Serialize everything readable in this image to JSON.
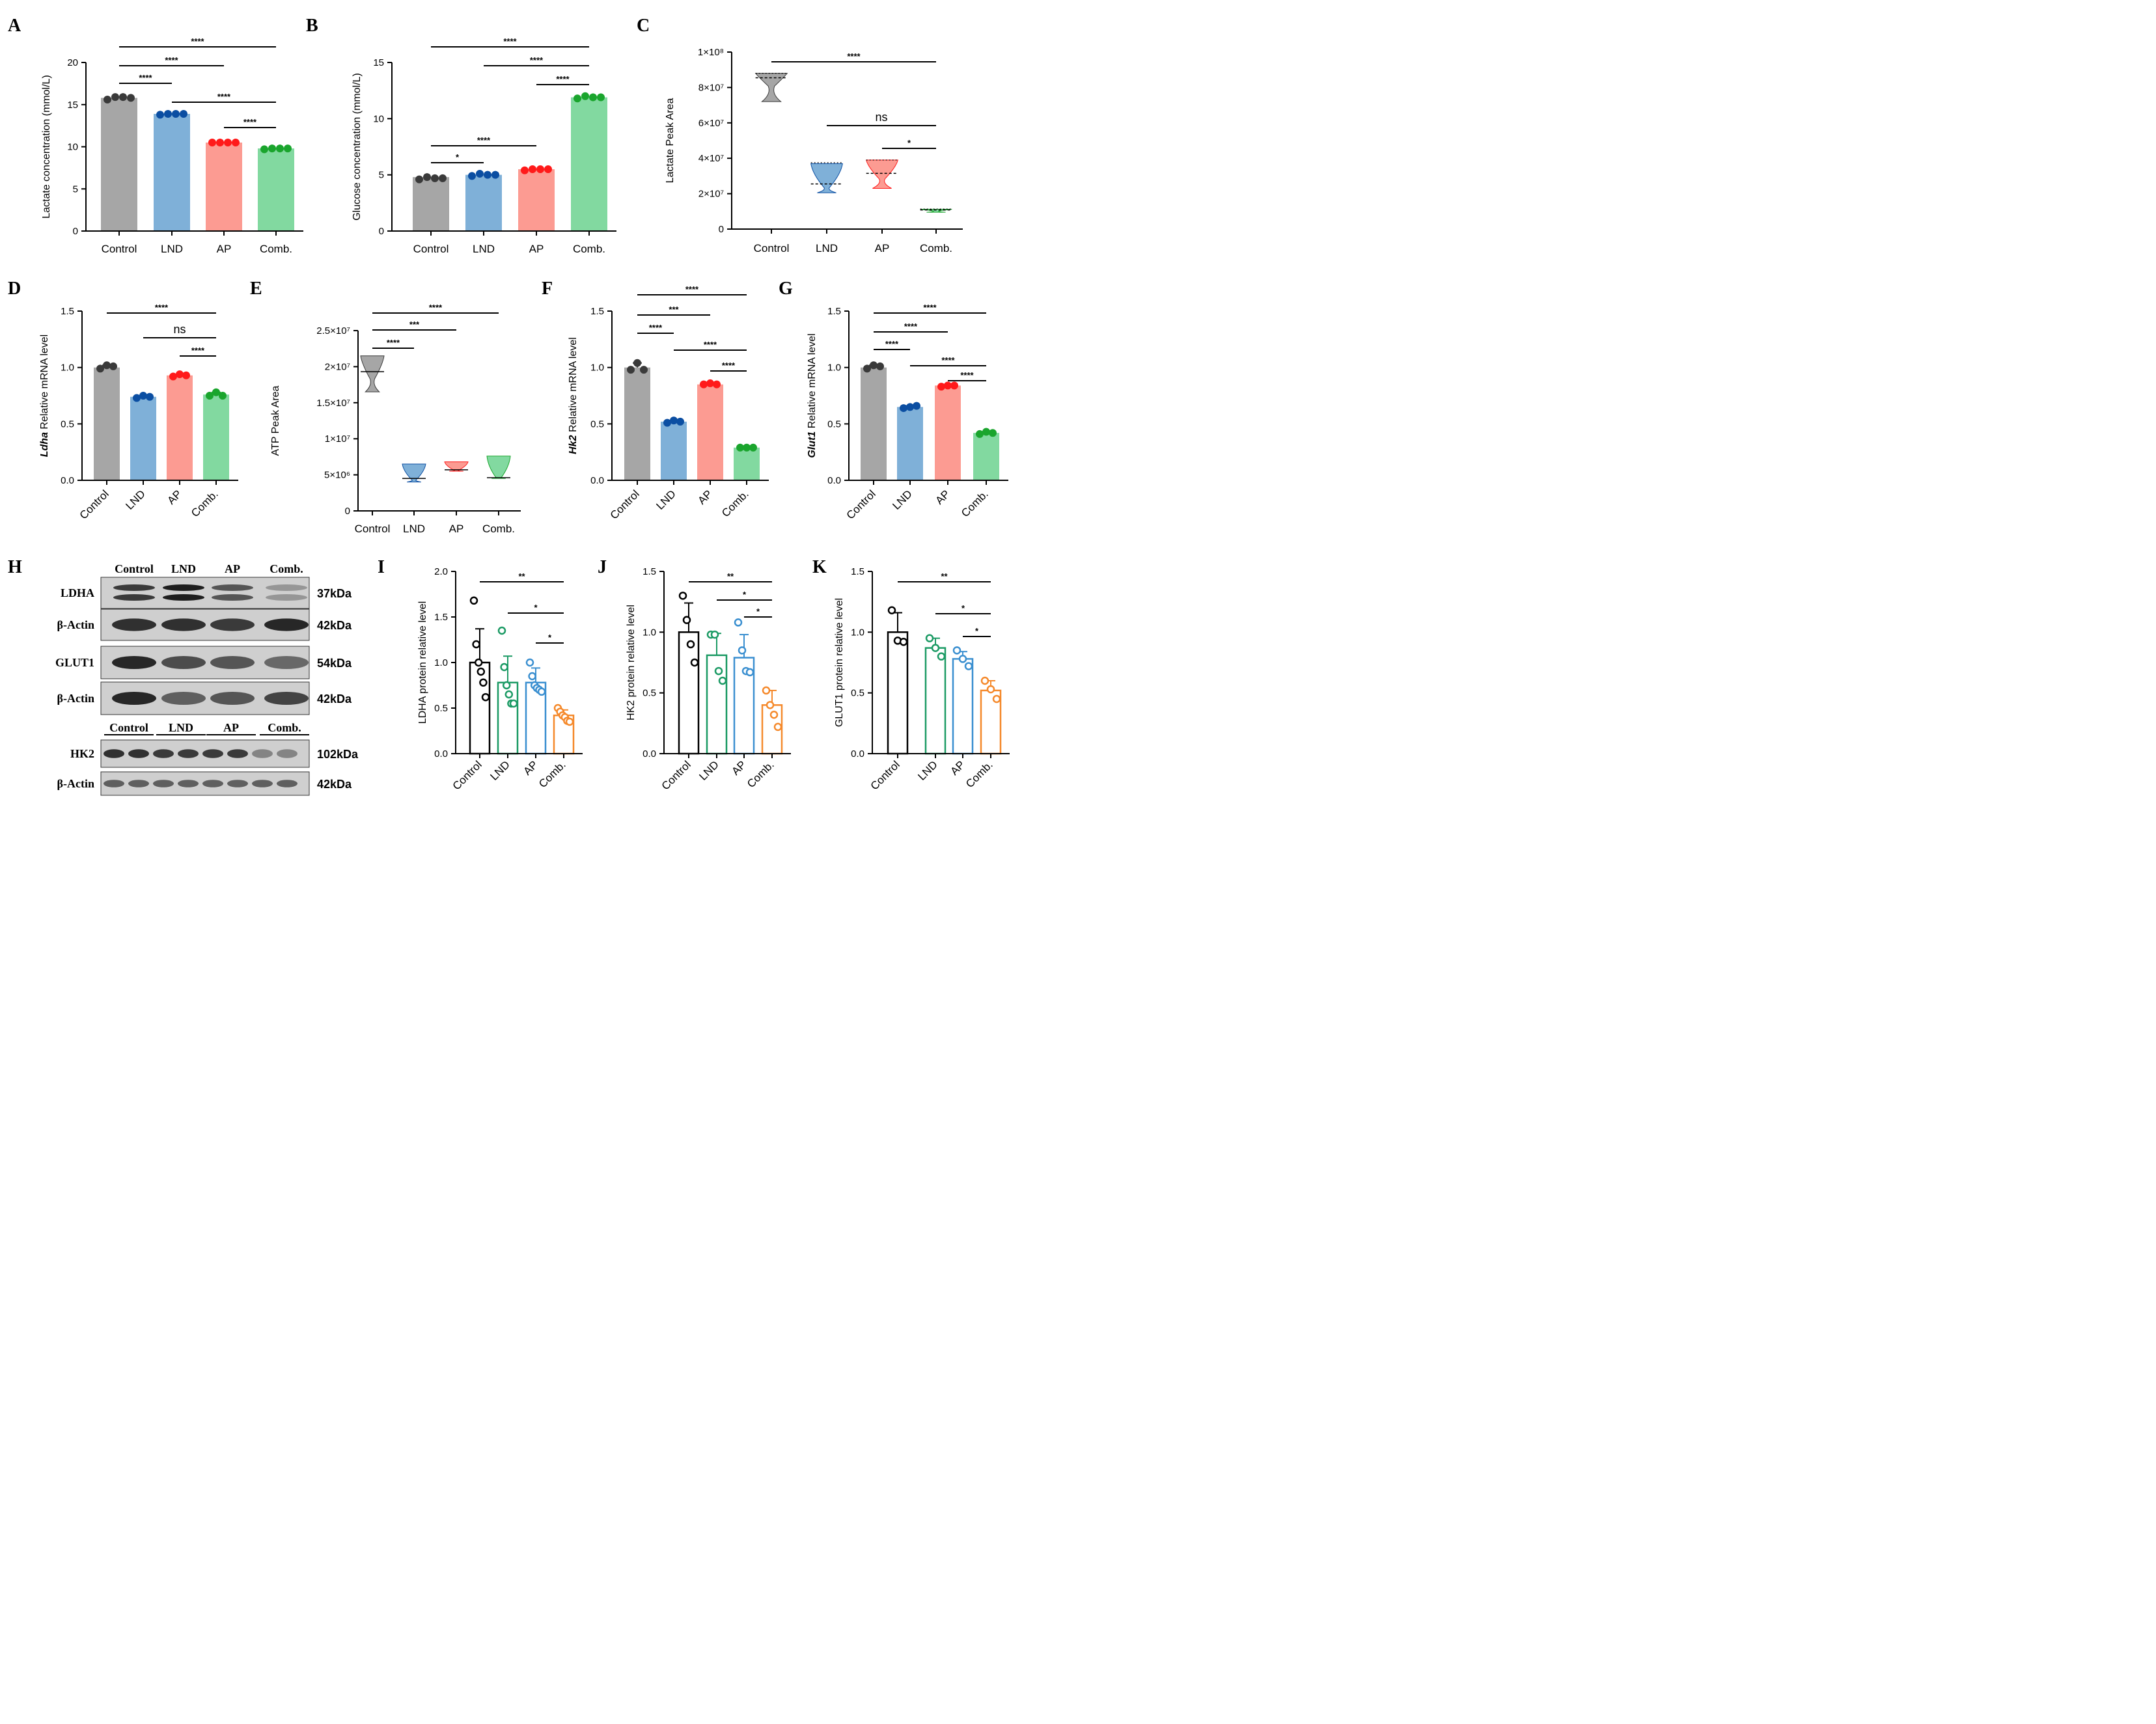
{
  "colors": {
    "control": "#a6a6a6",
    "lnd": "#7fb0d8",
    "ap": "#fc9b92",
    "comb": "#82d9a0",
    "control_dot": "#3a3a3a",
    "lnd_dot": "#0b4ea2",
    "ap_dot": "#ff1a1a",
    "comb_dot": "#1aa52d",
    "wb_control": "#000000",
    "wb_lnd": "#1b9a64",
    "wb_ap": "#3a8fd0",
    "wb_comb": "#f5892b"
  },
  "chart_data": [
    {
      "id": "A",
      "letter": "A",
      "type": "bar",
      "categories": [
        "Control",
        "LND",
        "AP",
        "Comb."
      ],
      "values": [
        15.8,
        13.9,
        10.5,
        9.8
      ],
      "points": [
        [
          15.6,
          15.9,
          15.9,
          15.8
        ],
        [
          13.8,
          13.9,
          13.9,
          13.9
        ],
        [
          10.5,
          10.5,
          10.5,
          10.5
        ],
        [
          9.7,
          9.8,
          9.8,
          9.8
        ]
      ],
      "ylabel": "Lactate concentration (mmol/L)",
      "ylim": [
        0,
        20
      ],
      "yticks": [
        "0",
        "5",
        "10",
        "15",
        "20"
      ],
      "significance": [
        {
          "from": 0,
          "to": 3,
          "label": "****"
        },
        {
          "from": 0,
          "to": 2,
          "label": "****"
        },
        {
          "from": 0,
          "to": 1,
          "label": "****"
        },
        {
          "from": 1,
          "to": 3,
          "label": "****"
        },
        {
          "from": 2,
          "to": 3,
          "label": "****"
        }
      ]
    },
    {
      "id": "B",
      "letter": "B",
      "type": "bar",
      "categories": [
        "Control",
        "LND",
        "AP",
        "Comb."
      ],
      "values": [
        4.8,
        5.0,
        5.5,
        11.9
      ],
      "points": [
        [
          4.6,
          4.8,
          4.7,
          4.7
        ],
        [
          4.9,
          5.1,
          5.0,
          5.0
        ],
        [
          5.4,
          5.5,
          5.5,
          5.5
        ],
        [
          11.8,
          12.0,
          11.9,
          11.9
        ]
      ],
      "ylabel": "Glucose concentration (mmol/L)",
      "ylim": [
        0,
        15
      ],
      "yticks": [
        "0",
        "5",
        "10",
        "15"
      ],
      "significance": [
        {
          "from": 0,
          "to": 3,
          "label": "****"
        },
        {
          "from": 1,
          "to": 3,
          "label": "****"
        },
        {
          "from": 2,
          "to": 3,
          "label": "****"
        },
        {
          "from": 0,
          "to": 2,
          "label": "****"
        },
        {
          "from": 0,
          "to": 1,
          "label": "*"
        }
      ]
    },
    {
      "id": "C",
      "letter": "C",
      "type": "violin",
      "categories": [
        "Control",
        "LND",
        "AP",
        "Comb."
      ],
      "min": [
        72000000,
        20500000,
        23000000,
        9500000
      ],
      "max": [
        88000000,
        37000000,
        39000000,
        11200000
      ],
      "median": [
        85500000,
        25500000,
        31500000,
        10800000
      ],
      "q1": [
        71500000,
        20000000,
        22500000,
        9500000
      ],
      "q3": [
        88000000,
        37500000,
        39000000,
        11300000
      ],
      "ylabel": "Lactate Peak Area",
      "ylim": [
        0,
        100000000
      ],
      "yticks": [
        "0",
        "2×10⁷",
        "4×10⁷",
        "6×10⁷",
        "8×10⁷",
        "1×10⁸"
      ],
      "significance": [
        {
          "from": 0,
          "to": 3,
          "label": "****"
        },
        {
          "from": 1,
          "to": 3,
          "label": "ns"
        },
        {
          "from": 2,
          "to": 3,
          "label": "*"
        }
      ]
    },
    {
      "id": "D",
      "letter": "D",
      "type": "bar",
      "categories": [
        "Control",
        "LND",
        "AP",
        "Comb."
      ],
      "values": [
        1.0,
        0.74,
        0.93,
        0.76
      ],
      "points": [
        [
          0.99,
          1.02,
          1.01
        ],
        [
          0.73,
          0.75,
          0.74
        ],
        [
          0.92,
          0.94,
          0.93
        ],
        [
          0.75,
          0.78,
          0.75
        ]
      ],
      "errors": [
        0.02,
        0.01,
        0.01,
        0.02
      ],
      "ylabel_italic": "Ldha",
      "ylabel": " Relative mRNA level",
      "ylim": [
        0,
        1.5
      ],
      "yticks": [
        "0.0",
        "0.5",
        "1.0",
        "1.5"
      ],
      "significance": [
        {
          "from": 0,
          "to": 3,
          "label": "****"
        },
        {
          "from": 1,
          "to": 3,
          "label": "ns"
        },
        {
          "from": 2,
          "to": 3,
          "label": "****"
        }
      ]
    },
    {
      "id": "E",
      "letter": "E",
      "type": "violin",
      "categories": [
        "Control",
        "LND",
        "AP",
        "Comb."
      ],
      "min": [
        16500000,
        4000000,
        5500000,
        4500000
      ],
      "max": [
        21500000,
        6500000,
        6800000,
        7600000
      ],
      "median": [
        19300000,
        4500000,
        5700000,
        4600000
      ],
      "q1": [
        16200000,
        4000000,
        5500000,
        4400000
      ],
      "q3": [
        21500000,
        6700000,
        6800000,
        7700000
      ],
      "ylabel": "ATP Peak Area",
      "ylim": [
        0,
        25000000
      ],
      "yticks": [
        "0",
        "5×10⁶",
        "1×10⁷",
        "1.5×10⁷",
        "2×10⁷",
        "2.5×10⁷"
      ],
      "significance": [
        {
          "from": 0,
          "to": 3,
          "label": "****"
        },
        {
          "from": 0,
          "to": 2,
          "label": "***"
        },
        {
          "from": 0,
          "to": 1,
          "label": "****"
        }
      ]
    },
    {
      "id": "F",
      "letter": "F",
      "type": "bar",
      "categories": [
        "Control",
        "LND",
        "AP",
        "Comb."
      ],
      "values": [
        1.0,
        0.52,
        0.85,
        0.29
      ],
      "points": [
        [
          0.98,
          1.04,
          0.98
        ],
        [
          0.51,
          0.53,
          0.52
        ],
        [
          0.85,
          0.86,
          0.85
        ],
        [
          0.29,
          0.29,
          0.29
        ]
      ],
      "errors": [
        0.04,
        0.01,
        0.01,
        0.005
      ],
      "ylabel_italic": "Hk2",
      "ylabel": " Relative mRNA level",
      "ylim": [
        0,
        1.5
      ],
      "yticks": [
        "0.0",
        "0.5",
        "1.0",
        "1.5"
      ],
      "significance": [
        {
          "from": 0,
          "to": 3,
          "label": "****"
        },
        {
          "from": 0,
          "to": 2,
          "label": "***"
        },
        {
          "from": 0,
          "to": 1,
          "label": "****"
        },
        {
          "from": 1,
          "to": 3,
          "label": "****"
        },
        {
          "from": 2,
          "to": 3,
          "label": "****"
        }
      ]
    },
    {
      "id": "G",
      "letter": "G",
      "type": "bar",
      "categories": [
        "Control",
        "LND",
        "AP",
        "Comb."
      ],
      "values": [
        1.0,
        0.65,
        0.84,
        0.42
      ],
      "points": [
        [
          0.99,
          1.02,
          1.01
        ],
        [
          0.64,
          0.65,
          0.66
        ],
        [
          0.83,
          0.84,
          0.84
        ],
        [
          0.41,
          0.43,
          0.42
        ]
      ],
      "errors": [
        0.02,
        0.01,
        0.01,
        0.01
      ],
      "ylabel_italic": "Glut1",
      "ylabel": " Relative mRNA level",
      "ylim": [
        0,
        1.5
      ],
      "yticks": [
        "0.0",
        "0.5",
        "1.0",
        "1.5"
      ],
      "significance": [
        {
          "from": 0,
          "to": 3,
          "label": "****"
        },
        {
          "from": 0,
          "to": 2,
          "label": "****"
        },
        {
          "from": 0,
          "to": 1,
          "label": "****"
        },
        {
          "from": 1,
          "to": 3,
          "label": "****"
        },
        {
          "from": 2,
          "to": 3,
          "label": "****"
        }
      ]
    },
    {
      "id": "I",
      "letter": "I",
      "type": "bar",
      "categories": [
        "Control",
        "LND",
        "AP",
        "Comb."
      ],
      "values": [
        1.0,
        0.78,
        0.78,
        0.42
      ],
      "points": [
        [
          1.68,
          1.2,
          1.0,
          0.9,
          0.78,
          0.62
        ],
        [
          1.35,
          0.95,
          0.75,
          0.65,
          0.55,
          0.55
        ],
        [
          1.0,
          0.85,
          0.75,
          0.72,
          0.7,
          0.68
        ],
        [
          0.5,
          0.46,
          0.42,
          0.4,
          0.36,
          0.35
        ]
      ],
      "errors": [
        0.37,
        0.29,
        0.16,
        0.06
      ],
      "ylabel": "LDHA protein relative level",
      "ylim": [
        0,
        2.0
      ],
      "yticks": [
        "0.0",
        "0.5",
        "1.0",
        "1.5",
        "2.0"
      ],
      "significance": [
        {
          "from": 0,
          "to": 3,
          "label": "**"
        },
        {
          "from": 1,
          "to": 3,
          "label": "*"
        },
        {
          "from": 2,
          "to": 3,
          "label": "*"
        }
      ]
    },
    {
      "id": "J",
      "letter": "J",
      "type": "bar",
      "categories": [
        "Control",
        "LND",
        "AP",
        "Comb."
      ],
      "values": [
        1.0,
        0.81,
        0.79,
        0.4
      ],
      "points": [
        [
          1.3,
          1.1,
          0.9,
          0.75
        ],
        [
          0.98,
          0.98,
          0.68,
          0.6
        ],
        [
          1.08,
          0.85,
          0.68,
          0.67
        ],
        [
          0.52,
          0.4,
          0.32,
          0.22
        ]
      ],
      "errors": [
        0.24,
        0.18,
        0.19,
        0.12
      ],
      "ylabel": "HK2 protein relative level",
      "ylim": [
        0,
        1.5
      ],
      "yticks": [
        "0.0",
        "0.5",
        "1.0",
        "1.5"
      ],
      "significance": [
        {
          "from": 0,
          "to": 3,
          "label": "**"
        },
        {
          "from": 1,
          "to": 3,
          "label": "*"
        },
        {
          "from": 2,
          "to": 3,
          "label": "*"
        }
      ]
    },
    {
      "id": "K",
      "letter": "K",
      "type": "bar",
      "categories": [
        "Control",
        "LND",
        "AP",
        "Comb."
      ],
      "values": [
        1.0,
        0.87,
        0.78,
        0.52
      ],
      "points": [
        [
          1.18,
          0.93,
          0.92
        ],
        [
          0.95,
          0.87,
          0.8
        ],
        [
          0.85,
          0.78,
          0.72
        ],
        [
          0.6,
          0.53,
          0.45
        ]
      ],
      "errors": [
        0.16,
        0.08,
        0.06,
        0.08
      ],
      "ylabel": "GLUT1 protein relative level",
      "ylim": [
        0,
        1.5
      ],
      "yticks": [
        "0.0",
        "0.5",
        "1.0",
        "1.5"
      ],
      "significance": [
        {
          "from": 0,
          "to": 3,
          "label": "**"
        },
        {
          "from": 1,
          "to": 3,
          "label": "*"
        },
        {
          "from": 2,
          "to": 3,
          "label": "*"
        }
      ]
    }
  ],
  "western_blot": {
    "letter": "H",
    "header_top": [
      "Control",
      "LND",
      "AP",
      "Comb."
    ],
    "header_bottom": [
      "Control",
      "LND",
      "AP",
      "Comb."
    ],
    "rows": [
      {
        "label": "LDHA",
        "kda": "37kDa"
      },
      {
        "label": "β-Actin",
        "kda": "42kDa"
      },
      {
        "label": "GLUT1",
        "kda": "54kDa"
      },
      {
        "label": "β-Actin",
        "kda": "42kDa"
      },
      {
        "label": "HK2",
        "kda": "102kDa"
      },
      {
        "label": "β-Actin",
        "kda": "42kDa"
      }
    ]
  }
}
